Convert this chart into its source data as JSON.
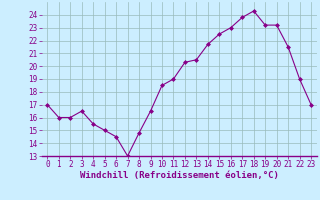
{
  "x": [
    0,
    1,
    2,
    3,
    4,
    5,
    6,
    7,
    8,
    9,
    10,
    11,
    12,
    13,
    14,
    15,
    16,
    17,
    18,
    19,
    20,
    21,
    22,
    23
  ],
  "y": [
    17,
    16,
    16,
    16.5,
    15.5,
    15,
    14.5,
    13,
    14.8,
    16.5,
    18.5,
    19,
    20.3,
    20.5,
    21.7,
    22.5,
    23,
    23.8,
    24.3,
    23.2,
    23.2,
    21.5,
    19,
    17
  ],
  "line_color": "#880088",
  "marker_color": "#880088",
  "bg_color": "#cceeff",
  "grid_color": "#99bbbb",
  "xlabel": "Windchill (Refroidissement éolien,°C)",
  "xlabel_color": "#880088",
  "ylim": [
    13,
    25
  ],
  "xlim": [
    -0.5,
    23.5
  ],
  "yticks": [
    13,
    14,
    15,
    16,
    17,
    18,
    19,
    20,
    21,
    22,
    23,
    24
  ],
  "xticks": [
    0,
    1,
    2,
    3,
    4,
    5,
    6,
    7,
    8,
    9,
    10,
    11,
    12,
    13,
    14,
    15,
    16,
    17,
    18,
    19,
    20,
    21,
    22,
    23
  ],
  "font_size_xlabel": 6.5,
  "font_size_ticks": 5.5
}
